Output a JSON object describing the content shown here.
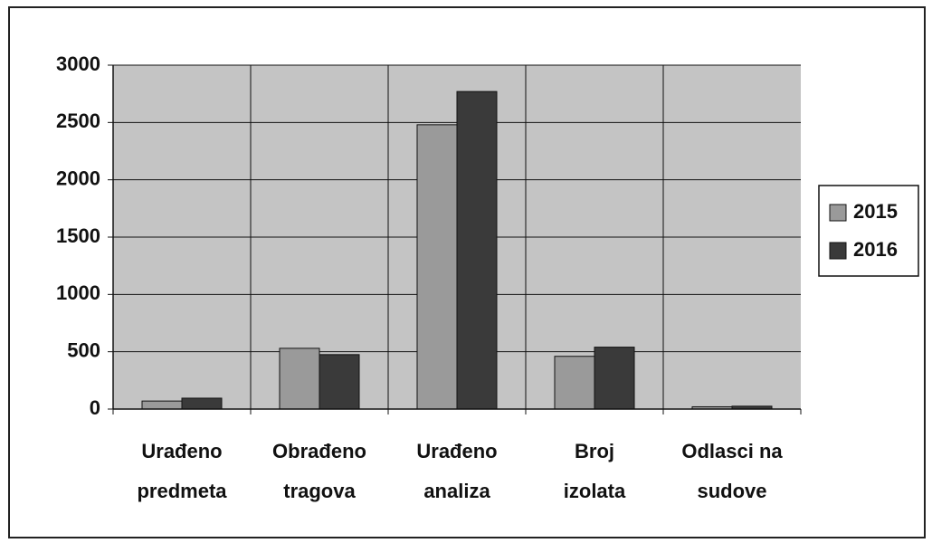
{
  "chart_data": {
    "type": "bar",
    "categories": [
      "Urađeno predmeta",
      "Obrađeno tragova",
      "Urađeno analiza",
      "Broj izolata",
      "Odlasci na sudove"
    ],
    "series": [
      {
        "name": "2015",
        "color": "#9a9a9a",
        "values": [
          70,
          530,
          2480,
          460,
          20
        ]
      },
      {
        "name": "2016",
        "color": "#3a3a3a",
        "values": [
          95,
          475,
          2770,
          540,
          25
        ]
      }
    ],
    "ylim": [
      0,
      3000
    ],
    "yticks": [
      0,
      500,
      1000,
      1500,
      2000,
      2500,
      3000
    ],
    "grid": true,
    "legend": "right"
  }
}
